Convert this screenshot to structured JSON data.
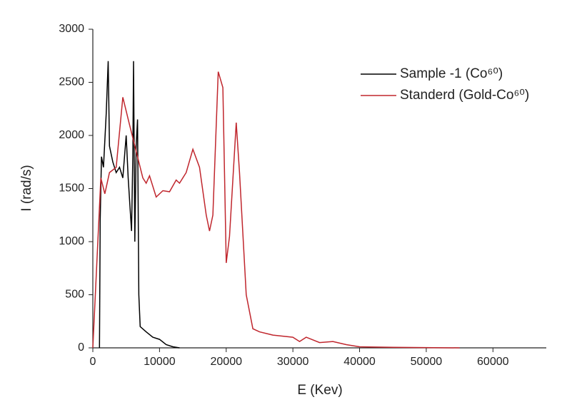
{
  "chart_data": {
    "type": "line",
    "xlabel": "E (Kev)",
    "ylabel": "I (rad/s)",
    "xlim": [
      0,
      68000
    ],
    "xticks": [
      0,
      10000,
      20000,
      30000,
      40000,
      50000,
      60000
    ],
    "ylim": [
      0,
      3000
    ],
    "yticks": [
      0,
      500,
      1000,
      1500,
      2000,
      2500,
      3000
    ],
    "legend": "upper right",
    "series": [
      {
        "name": "Sample -1 (Co⁶⁰)",
        "color": "#000000",
        "x": [
          1000,
          1100,
          1300,
          1600,
          2000,
          2300,
          2500,
          3000,
          3500,
          4000,
          4500,
          5000,
          5300,
          5600,
          5800,
          6000,
          6100,
          6300,
          6500,
          6700,
          6900,
          7100,
          8000,
          9000,
          10000,
          11000,
          12000,
          13000
        ],
        "values": [
          0,
          1200,
          1800,
          1700,
          2200,
          2700,
          1900,
          1750,
          1650,
          1700,
          1600,
          2000,
          1600,
          1300,
          1100,
          1800,
          2700,
          1000,
          1900,
          2150,
          500,
          200,
          150,
          100,
          80,
          30,
          10,
          0
        ]
      },
      {
        "name": "Standerd (Gold-Co⁶⁰)",
        "color": "#c0262d",
        "x": [
          0,
          1200,
          1800,
          2500,
          3500,
          4500,
          5500,
          6500,
          7500,
          8000,
          8500,
          9500,
          10500,
          11500,
          12500,
          13000,
          14000,
          15000,
          16000,
          17000,
          17500,
          18000,
          18800,
          19500,
          20000,
          20500,
          21500,
          22000,
          23000,
          24000,
          25000,
          27000,
          30000,
          31000,
          32000,
          34000,
          36000,
          38000,
          40000,
          45000,
          55000
        ],
        "values": [
          0,
          1600,
          1450,
          1650,
          1700,
          2360,
          2100,
          1850,
          1600,
          1550,
          1620,
          1420,
          1480,
          1470,
          1580,
          1550,
          1650,
          1870,
          1700,
          1250,
          1100,
          1250,
          2600,
          2450,
          800,
          1050,
          2120,
          1650,
          500,
          180,
          150,
          120,
          100,
          60,
          100,
          50,
          60,
          30,
          10,
          5,
          0
        ]
      }
    ]
  }
}
